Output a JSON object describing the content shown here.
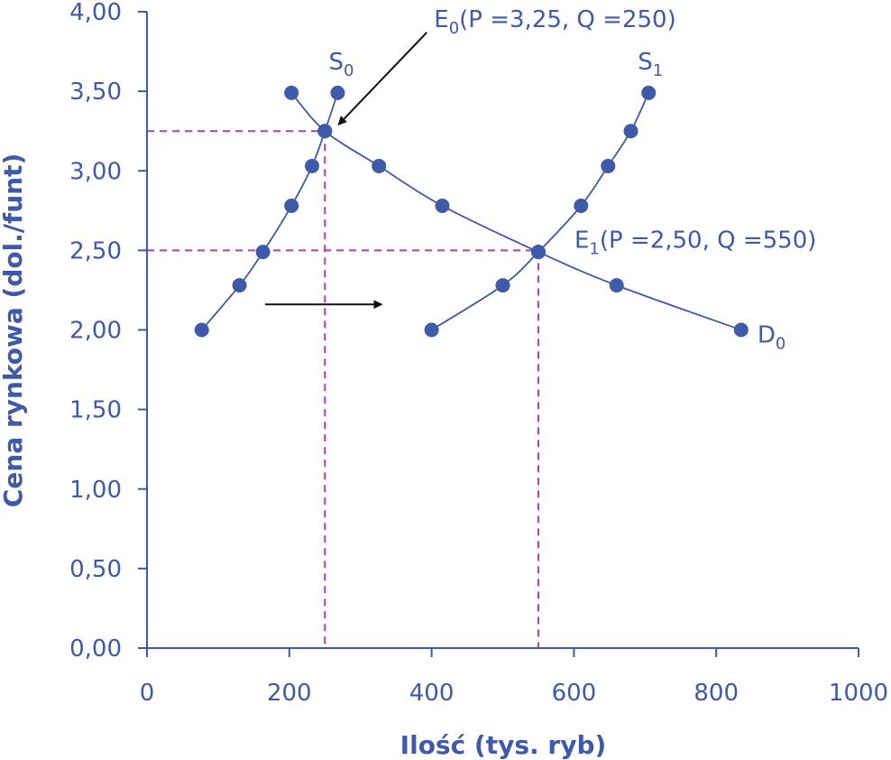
{
  "chart_data": {
    "type": "line",
    "xlabel": "Ilość (tys. ryb)",
    "ylabel": "Cena rynkowa (dol./funt)",
    "xlim": [
      0,
      1000
    ],
    "ylim": [
      0,
      4.0
    ],
    "x_ticks": [
      0,
      200,
      400,
      600,
      800,
      1000
    ],
    "x_tick_labels": [
      "0",
      "200",
      "400",
      "600",
      "800",
      "1000"
    ],
    "y_ticks": [
      0,
      0.5,
      1.0,
      1.5,
      2.0,
      2.5,
      3.0,
      3.5,
      4.0
    ],
    "y_tick_labels": [
      "0,00",
      "0,50",
      "1,00",
      "1,50",
      "2,00",
      "2,50",
      "3,00",
      "3,50",
      "4,00"
    ],
    "grid": false,
    "series": [
      {
        "name": "S0",
        "label_main": "S",
        "label_sub": "0",
        "points": [
          [
            77,
            2.0
          ],
          [
            130,
            2.28
          ],
          [
            163,
            2.49
          ],
          [
            203,
            2.78
          ],
          [
            232,
            3.03
          ],
          [
            250,
            3.25
          ],
          [
            268,
            3.49
          ]
        ]
      },
      {
        "name": "S1",
        "label_main": "S",
        "label_sub": "1",
        "points": [
          [
            400,
            2.0
          ],
          [
            500,
            2.28
          ],
          [
            550,
            2.49
          ],
          [
            610,
            2.78
          ],
          [
            648,
            3.03
          ],
          [
            680,
            3.25
          ],
          [
            705,
            3.49
          ]
        ]
      },
      {
        "name": "D0",
        "label_main": "D",
        "label_sub": "0",
        "points": [
          [
            203,
            3.49
          ],
          [
            250,
            3.25
          ],
          [
            326,
            3.03
          ],
          [
            415,
            2.78
          ],
          [
            550,
            2.49
          ],
          [
            660,
            2.28
          ],
          [
            835,
            2.0
          ]
        ]
      }
    ],
    "equilibria": [
      {
        "name": "E0",
        "x": 250,
        "y": 3.25,
        "label_main": "E",
        "label_sub": "0",
        "label_rest": "(P =3,25, Q =250)"
      },
      {
        "name": "E1",
        "x": 550,
        "y": 2.5,
        "label_main": "E",
        "label_sub": "1",
        "label_rest": "(P =2,50, Q =550)"
      }
    ],
    "colors": {
      "axis_text": "#3f5aa8",
      "series": "#3f5aa8",
      "marker": "#3f5aa8",
      "guide": "#b040a8",
      "arrow": "#111111"
    }
  }
}
